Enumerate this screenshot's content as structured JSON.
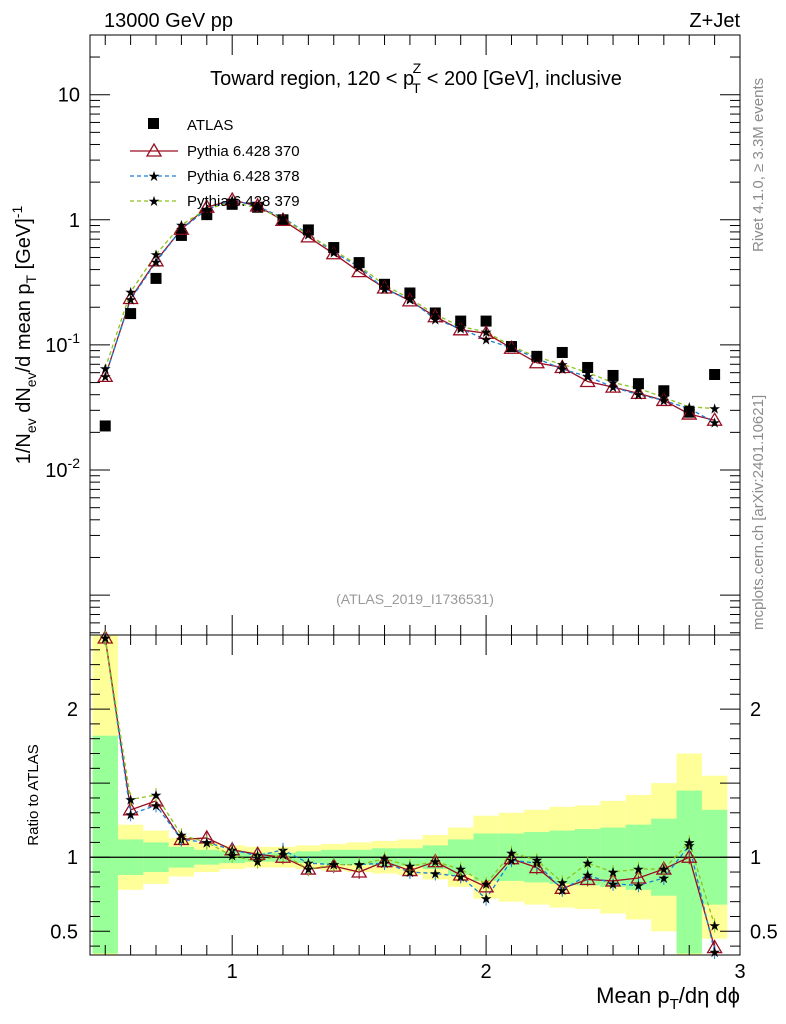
{
  "header": {
    "left": "13000 GeV pp",
    "right": "Z+Jet",
    "side_rivet": "Rivet 4.1.0, ≥ 3.3M events",
    "side_mcplots": "mcplots.cern.ch [arXiv:2401.10621]",
    "ref_label": "(ATLAS_2019_I1736531)"
  },
  "colors": {
    "atlas": "#000000",
    "p370": "#9b0d22",
    "p378": "#1a7fd9",
    "p379": "#8fc21a",
    "band_yellow": "#ffff99",
    "band_green": "#99ff99"
  },
  "chart_data": [
    {
      "type": "scatter",
      "title_parts": {
        "pre": "Toward region, 120 < p",
        "sup": "Z",
        "sub": "T",
        "post": " < 200 [GeV], inclusive"
      },
      "ylabel_parts": {
        "a": "1/N",
        "a_sub": "ev",
        "b": " dN",
        "b_sub": "ev",
        "c": "/d mean p",
        "c_sub": "T",
        "d": " [GeV]",
        "d_sup": "-1"
      },
      "yscale": "log",
      "ylim": [
        0.00048,
        30
      ],
      "xlim": [
        0.44,
        3.0
      ],
      "ytick_labels": [
        {
          "base": "10",
          "exp": "-2",
          "v": 0.01
        },
        {
          "base": "10",
          "exp": "-1",
          "v": 0.1
        },
        {
          "base": "1",
          "exp": "",
          "v": 1
        },
        {
          "base": "10",
          "exp": "",
          "v": 10
        }
      ],
      "legend": [
        "ATLAS",
        "Pythia 6.428 370",
        "Pythia 6.428 378",
        "Pythia 6.428 379"
      ],
      "x": [
        0.5,
        0.6,
        0.7,
        0.8,
        0.9,
        1.0,
        1.1,
        1.2,
        1.3,
        1.4,
        1.5,
        1.6,
        1.7,
        1.8,
        1.9,
        2.0,
        2.1,
        2.2,
        2.3,
        2.4,
        2.5,
        2.6,
        2.7,
        2.8,
        2.9
      ],
      "series": [
        {
          "name": "ATLAS",
          "values": [
            0.0225,
            0.178,
            0.34,
            0.75,
            1.1,
            1.33,
            1.26,
            1.0,
            0.83,
            0.6,
            0.455,
            0.305,
            0.26,
            0.18,
            0.155,
            0.155,
            0.097,
            0.081,
            0.087,
            0.066,
            0.057,
            0.049,
            0.043,
            0.029,
            0.058
          ]
        },
        {
          "name": "Pythia 6.428 370",
          "values": [
            0.056,
            0.235,
            0.47,
            0.84,
            1.26,
            1.44,
            1.29,
            0.99,
            0.73,
            0.535,
            0.385,
            0.285,
            0.225,
            0.168,
            0.132,
            0.124,
            0.094,
            0.072,
            0.066,
            0.051,
            0.046,
            0.041,
            0.036,
            0.028,
            0.025
          ]
        },
        {
          "name": "Pythia 6.428 378",
          "values": [
            0.056,
            0.23,
            0.46,
            0.84,
            1.21,
            1.44,
            1.28,
            1.04,
            0.77,
            0.55,
            0.42,
            0.28,
            0.23,
            0.16,
            0.135,
            0.11,
            0.095,
            0.078,
            0.064,
            0.056,
            0.046,
            0.04,
            0.036,
            0.031,
            0.024
          ]
        },
        {
          "name": "Pythia 6.428 379",
          "values": [
            0.065,
            0.265,
            0.53,
            0.91,
            1.22,
            1.38,
            1.25,
            1.02,
            0.76,
            0.57,
            0.43,
            0.3,
            0.235,
            0.175,
            0.14,
            0.127,
            0.098,
            0.08,
            0.07,
            0.06,
            0.05,
            0.045,
            0.038,
            0.032,
            0.031
          ]
        }
      ]
    },
    {
      "type": "line",
      "ylabel": "Ratio to ATLAS",
      "xlabel_parts": {
        "a": "Mean p",
        "a_sub": "T",
        "b": "/dη dϕ"
      },
      "xlim": [
        0.44,
        3.0
      ],
      "ylim": [
        0.34,
        2.5
      ],
      "reference_line": 1,
      "ytick_labels": [
        {
          "t": "0.5",
          "v": 0.5
        },
        {
          "t": "1",
          "v": 1
        },
        {
          "t": "2",
          "v": 2
        }
      ],
      "xtick_labels": [
        {
          "t": "1",
          "v": 1
        },
        {
          "t": "2",
          "v": 2
        },
        {
          "t": "3",
          "v": 3
        }
      ],
      "x": [
        0.5,
        0.6,
        0.7,
        0.8,
        0.9,
        1.0,
        1.1,
        1.2,
        1.3,
        1.4,
        1.5,
        1.6,
        1.7,
        1.8,
        1.9,
        2.0,
        2.1,
        2.2,
        2.3,
        2.4,
        2.5,
        2.6,
        2.7,
        2.8,
        2.9
      ],
      "bin_edges": [
        0.45,
        0.55,
        0.65,
        0.75,
        0.85,
        0.95,
        1.05,
        1.15,
        1.25,
        1.35,
        1.45,
        1.55,
        1.65,
        1.75,
        1.85,
        1.95,
        2.05,
        2.15,
        2.25,
        2.35,
        2.45,
        2.55,
        2.65,
        2.75,
        2.85,
        2.95
      ],
      "band_yellow": {
        "lo": [
          0.0,
          0.78,
          0.82,
          0.87,
          0.9,
          0.92,
          0.93,
          0.93,
          0.92,
          0.91,
          0.9,
          0.89,
          0.88,
          0.85,
          0.8,
          0.72,
          0.7,
          0.68,
          0.66,
          0.65,
          0.62,
          0.58,
          0.5,
          0.3,
          0.45
        ],
        "hi": [
          2.5,
          1.22,
          1.18,
          1.13,
          1.1,
          1.08,
          1.07,
          1.07,
          1.08,
          1.09,
          1.1,
          1.11,
          1.12,
          1.15,
          1.2,
          1.28,
          1.3,
          1.32,
          1.34,
          1.35,
          1.38,
          1.42,
          1.5,
          1.7,
          1.55
        ]
      },
      "band_green": {
        "lo": [
          0.35,
          0.88,
          0.9,
          0.93,
          0.95,
          0.96,
          0.97,
          0.97,
          0.96,
          0.95,
          0.95,
          0.94,
          0.94,
          0.92,
          0.88,
          0.84,
          0.84,
          0.83,
          0.82,
          0.81,
          0.8,
          0.78,
          0.74,
          0.35,
          0.68
        ],
        "hi": [
          1.82,
          1.12,
          1.1,
          1.07,
          1.05,
          1.04,
          1.03,
          1.03,
          1.04,
          1.05,
          1.05,
          1.06,
          1.06,
          1.08,
          1.12,
          1.16,
          1.16,
          1.17,
          1.18,
          1.19,
          1.2,
          1.22,
          1.26,
          1.45,
          1.32
        ]
      },
      "series": [
        {
          "name": "Pythia 6.428 370",
          "values": [
            2.48,
            1.32,
            1.38,
            1.12,
            1.13,
            1.05,
            1.02,
            1.0,
            0.92,
            0.94,
            0.9,
            0.97,
            0.91,
            0.97,
            0.88,
            0.8,
            0.99,
            0.93,
            0.79,
            0.85,
            0.84,
            0.86,
            0.92,
            1.0,
            0.39
          ]
        },
        {
          "name": "Pythia 6.428 378",
          "values": [
            2.48,
            1.29,
            1.35,
            1.12,
            1.1,
            1.05,
            1.01,
            1.05,
            0.96,
            0.95,
            0.95,
            0.96,
            0.9,
            0.89,
            0.87,
            0.72,
            0.98,
            0.96,
            0.78,
            0.88,
            0.82,
            0.81,
            0.86,
            1.08,
            0.36
          ]
        },
        {
          "name": "Pythia 6.428 379",
          "values": [
            2.48,
            1.39,
            1.42,
            1.15,
            1.1,
            1.01,
            0.97,
            1.02,
            0.92,
            0.95,
            0.95,
            0.99,
            0.94,
            0.97,
            0.92,
            0.82,
            1.03,
            0.98,
            0.83,
            0.96,
            0.9,
            0.92,
            0.92,
            1.1,
            0.54
          ]
        }
      ]
    }
  ]
}
